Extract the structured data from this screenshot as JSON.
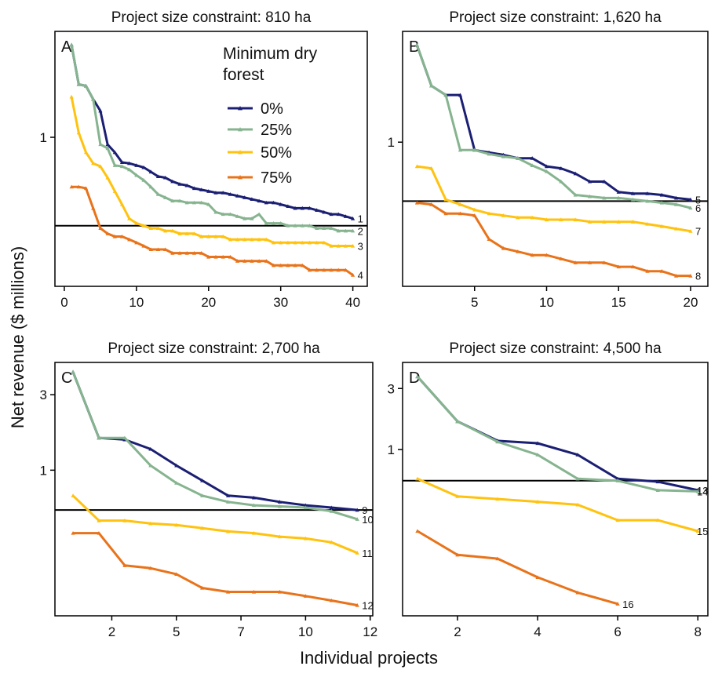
{
  "xlabel": "Individual projects",
  "ylabel": "Net revenue ($ millions)",
  "legend_title": "Minimum dry forest",
  "chart_data": [
    {
      "type": "line",
      "title": "Project size constraint: 810 ha",
      "panel_label": "A",
      "ylog": true,
      "xlim": [
        -1.3,
        42
      ],
      "xticks": [
        0,
        10,
        20,
        30,
        40
      ],
      "ylim": [
        0.11,
        4.8
      ],
      "yticks": [
        1
      ],
      "hline": 0.27,
      "x": [
        1,
        2,
        3,
        4,
        5,
        6,
        7,
        8,
        9,
        10,
        11,
        12,
        13,
        14,
        15,
        16,
        17,
        18,
        19,
        20,
        21,
        22,
        23,
        24,
        25,
        26,
        27,
        28,
        29,
        30,
        31,
        32,
        33,
        34,
        35,
        36,
        37,
        38,
        39,
        40
      ],
      "series": [
        {
          "name": "0%",
          "color": "#1b1f73",
          "end_label": "1",
          "values": [
            3.93,
            2.19,
            2.14,
            1.76,
            1.48,
            0.9,
            0.8,
            0.69,
            0.68,
            0.66,
            0.64,
            0.6,
            0.56,
            0.55,
            0.52,
            0.5,
            0.49,
            0.47,
            0.46,
            0.45,
            0.44,
            0.44,
            0.43,
            0.42,
            0.41,
            0.4,
            0.39,
            0.38,
            0.38,
            0.37,
            0.36,
            0.35,
            0.35,
            0.35,
            0.34,
            0.33,
            0.32,
            0.32,
            0.31,
            0.3
          ]
        },
        {
          "name": "25%",
          "color": "#86b48f",
          "end_label": "2",
          "values": [
            3.93,
            2.19,
            2.14,
            1.76,
            0.9,
            0.85,
            0.66,
            0.65,
            0.62,
            0.57,
            0.53,
            0.48,
            0.43,
            0.41,
            0.39,
            0.39,
            0.38,
            0.38,
            0.38,
            0.37,
            0.33,
            0.32,
            0.32,
            0.31,
            0.3,
            0.3,
            0.32,
            0.28,
            0.28,
            0.28,
            0.27,
            0.27,
            0.27,
            0.27,
            0.26,
            0.26,
            0.26,
            0.25,
            0.25,
            0.25
          ]
        },
        {
          "name": "50%",
          "color": "#ffc20e",
          "end_label": "3",
          "values": [
            1.82,
            1.07,
            0.8,
            0.68,
            0.65,
            0.55,
            0.45,
            0.37,
            0.3,
            0.28,
            0.27,
            0.26,
            0.26,
            0.25,
            0.25,
            0.24,
            0.24,
            0.24,
            0.23,
            0.23,
            0.23,
            0.23,
            0.22,
            0.22,
            0.22,
            0.22,
            0.22,
            0.22,
            0.21,
            0.21,
            0.21,
            0.21,
            0.21,
            0.21,
            0.21,
            0.21,
            0.2,
            0.2,
            0.2,
            0.2
          ]
        },
        {
          "name": "75%",
          "color": "#e8731a",
          "end_label": "4",
          "values": [
            0.48,
            0.48,
            0.47,
            0.35,
            0.26,
            0.24,
            0.23,
            0.23,
            0.22,
            0.21,
            0.2,
            0.19,
            0.19,
            0.19,
            0.18,
            0.18,
            0.18,
            0.18,
            0.18,
            0.17,
            0.17,
            0.17,
            0.17,
            0.16,
            0.16,
            0.16,
            0.16,
            0.16,
            0.15,
            0.15,
            0.15,
            0.15,
            0.15,
            0.14,
            0.14,
            0.14,
            0.14,
            0.14,
            0.14,
            0.13
          ]
        }
      ]
    },
    {
      "type": "line",
      "title": "Project size constraint: 1,620 ha",
      "panel_label": "B",
      "ylog": true,
      "xlim": [
        0,
        21.2
      ],
      "xticks": [
        5,
        10,
        15,
        20
      ],
      "ylim": [
        0.12,
        5.1
      ],
      "yticks": [
        1
      ],
      "hline": 0.42,
      "x": [
        1,
        2,
        3,
        4,
        5,
        6,
        7,
        8,
        9,
        10,
        11,
        12,
        13,
        14,
        15,
        16,
        17,
        18,
        19,
        20
      ],
      "series": [
        {
          "color": "#1b1f73",
          "end_label": "5",
          "values": [
            4.17,
            2.29,
            2.0,
            2.0,
            0.89,
            0.86,
            0.83,
            0.79,
            0.79,
            0.7,
            0.68,
            0.63,
            0.56,
            0.56,
            0.48,
            0.47,
            0.47,
            0.46,
            0.44,
            0.43
          ]
        },
        {
          "color": "#86b48f",
          "end_label": "6",
          "values": [
            4.17,
            2.29,
            2.0,
            0.89,
            0.89,
            0.84,
            0.81,
            0.79,
            0.71,
            0.65,
            0.56,
            0.46,
            0.45,
            0.44,
            0.44,
            0.43,
            0.42,
            0.41,
            0.4,
            0.38
          ]
        },
        {
          "color": "#ffc20e",
          "end_label": "7",
          "values": [
            0.7,
            0.68,
            0.43,
            0.4,
            0.37,
            0.35,
            0.34,
            0.33,
            0.33,
            0.32,
            0.32,
            0.32,
            0.31,
            0.31,
            0.31,
            0.31,
            0.3,
            0.29,
            0.28,
            0.27
          ]
        },
        {
          "color": "#e8731a",
          "end_label": "8",
          "values": [
            0.41,
            0.4,
            0.35,
            0.35,
            0.34,
            0.24,
            0.21,
            0.2,
            0.19,
            0.19,
            0.18,
            0.17,
            0.17,
            0.17,
            0.16,
            0.16,
            0.15,
            0.15,
            0.14,
            0.14
          ]
        }
      ]
    },
    {
      "type": "line",
      "title": "Project size constraint: 2,700 ha",
      "panel_label": "C",
      "ylog": true,
      "xlim": [
        0.3,
        12.6
      ],
      "xticks": [
        {
          "value": 2.5,
          "label": "2"
        },
        5,
        {
          "value": 7.5,
          "label": "7"
        },
        10,
        {
          "value": 12.5,
          "label": "12"
        }
      ],
      "ylim": [
        0.12,
        4.8
      ],
      "yticks": [
        1,
        3
      ],
      "hline": 0.56,
      "x": [
        1,
        2,
        3,
        4,
        5,
        6,
        7,
        8,
        9,
        10,
        11,
        12
      ],
      "series": [
        {
          "color": "#1b1f73",
          "end_label": "9",
          "values": [
            4.18,
            1.6,
            1.56,
            1.36,
            1.07,
            0.86,
            0.69,
            0.67,
            0.63,
            0.6,
            0.58,
            0.56
          ]
        },
        {
          "color": "#86b48f",
          "end_label": "10",
          "values": [
            4.18,
            1.6,
            1.6,
            1.07,
            0.83,
            0.69,
            0.63,
            0.6,
            0.59,
            0.58,
            0.55,
            0.49
          ]
        },
        {
          "color": "#ffc20e",
          "end_label": "11",
          "values": [
            0.69,
            0.48,
            0.48,
            0.46,
            0.45,
            0.43,
            0.41,
            0.4,
            0.38,
            0.37,
            0.35,
            0.3
          ]
        },
        {
          "color": "#e8731a",
          "end_label": "12",
          "values": [
            0.4,
            0.4,
            0.25,
            0.24,
            0.22,
            0.18,
            0.17,
            0.17,
            0.17,
            0.16,
            0.15,
            0.14
          ]
        }
      ]
    },
    {
      "type": "line",
      "title": "Project size constraint: 4,500 ha",
      "panel_label": "D",
      "ylog": true,
      "xlim": [
        0.63,
        8.25
      ],
      "xticks": [
        2,
        4,
        6,
        8
      ],
      "ylim": [
        0.05,
        4.8
      ],
      "yticks": [
        1,
        3
      ],
      "hline": 0.57,
      "x": [
        1,
        2,
        3,
        4,
        5,
        6,
        7,
        8
      ],
      "series": [
        {
          "color": "#1b1f73",
          "end_label": "13",
          "values": [
            3.72,
            1.66,
            1.17,
            1.12,
            0.91,
            0.59,
            0.56,
            0.48
          ]
        },
        {
          "color": "#86b48f",
          "end_label": "14",
          "values": [
            3.72,
            1.66,
            1.15,
            0.91,
            0.59,
            0.57,
            0.48,
            0.47
          ]
        },
        {
          "color": "#ffc20e",
          "end_label": "15",
          "values": [
            0.59,
            0.43,
            0.41,
            0.39,
            0.37,
            0.28,
            0.28,
            0.23
          ]
        },
        {
          "color": "#e8731a",
          "end_label": "16",
          "values": [
            0.23,
            0.15,
            0.14,
            0.1,
            0.076,
            0.062,
            null,
            null
          ]
        }
      ]
    }
  ]
}
